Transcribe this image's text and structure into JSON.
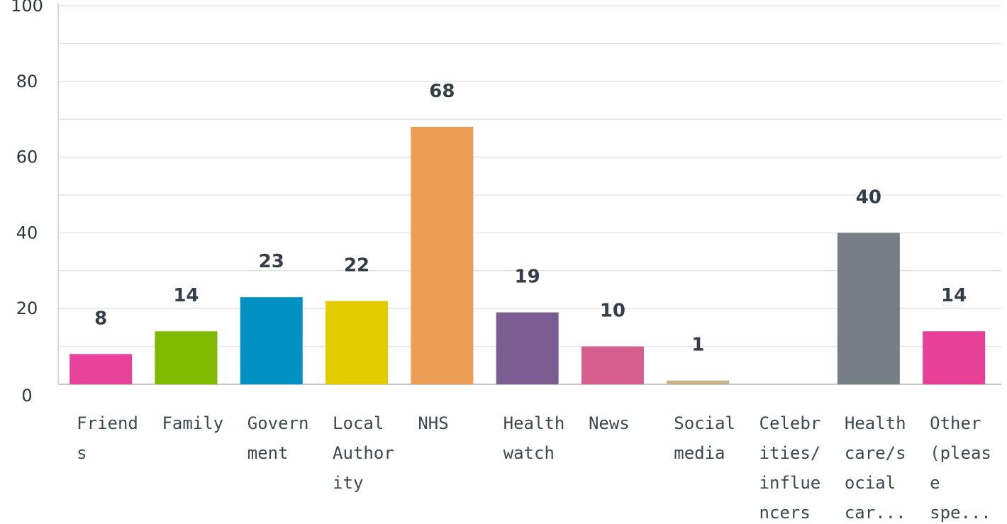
{
  "chart_data": {
    "type": "bar",
    "title": "",
    "xlabel": "",
    "ylabel": "",
    "ylim": [
      0,
      100
    ],
    "yticks": [
      0,
      20,
      40,
      60,
      80,
      100
    ],
    "grid": true,
    "categories": [
      "Friends",
      "Family",
      "Government",
      "Local Authority",
      "NHS",
      "Healthwatch",
      "News",
      "Social media",
      "Celebrities/influencers",
      "Healthcare/social car...",
      "Other (please spe..."
    ],
    "category_label_lines": [
      [
        "Friend",
        "s"
      ],
      [
        "Family"
      ],
      [
        "Govern",
        "ment"
      ],
      [
        "Local",
        "Author",
        "ity"
      ],
      [
        "NHS"
      ],
      [
        "Health",
        "watch"
      ],
      [
        "News"
      ],
      [
        "Social",
        "media"
      ],
      [
        "Celebr",
        "ities/",
        "influe",
        "ncers"
      ],
      [
        "Health",
        "care/s",
        "ocial",
        "car..."
      ],
      [
        "Other",
        "(pleas",
        "e",
        "spe..."
      ]
    ],
    "values": [
      8,
      14,
      23,
      22,
      68,
      19,
      10,
      1,
      0,
      40,
      14
    ],
    "value_labels": [
      "8",
      "14",
      "23",
      "22",
      "68",
      "19",
      "10",
      "1",
      "",
      "40",
      "14"
    ],
    "colors": [
      "#e8439a",
      "#7fba00",
      "#0090c3",
      "#e3cd00",
      "#ec9f54",
      "#7c5d91",
      "#d75f8d",
      "#c8b38a",
      "#c8c8c8",
      "#767d84",
      "#e63f96"
    ]
  }
}
